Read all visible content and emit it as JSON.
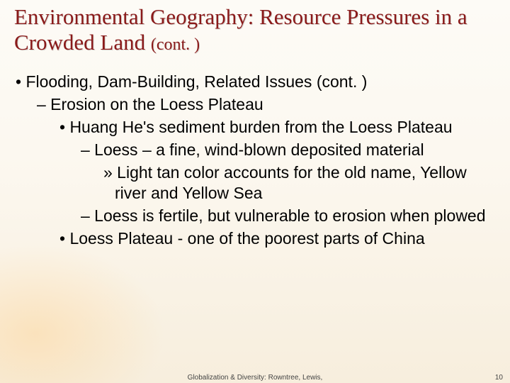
{
  "title": {
    "main": "Environmental Geography: Resource Pressures in a Crowded Land",
    "cont": "(cont. )",
    "color": "#8a1a1a",
    "font_family": "Garamond",
    "fontsize_main": 31,
    "fontsize_cont": 24
  },
  "body": {
    "fontsize": 23,
    "color": "#000000",
    "items": {
      "l1_1": "•  Flooding, Dam-Building, Related Issues (cont. )",
      "l2_1": "– Erosion on the Loess Plateau",
      "l3_1": "• Huang He's sediment burden from the Loess Plateau",
      "l4_1": "– Loess – a fine, wind-blown deposited material",
      "l5_1": "» Light tan color accounts for the old name, Yellow river and Yellow Sea",
      "l4_2": "– Loess is fertile, but vulnerable to erosion when plowed",
      "l3_2": "• Loess Plateau - one of the poorest parts of China"
    }
  },
  "footer": {
    "text": "Globalization & Diversity: Rowntree, Lewis,",
    "fontsize": 10,
    "color": "#444444"
  },
  "pageno": {
    "text": "10",
    "fontsize": 10,
    "color": "#444444"
  },
  "background": {
    "top_color": "#fdfbf6",
    "bottom_color": "#f7eedd",
    "glow_color": "rgba(255,200,120,0.35)"
  }
}
